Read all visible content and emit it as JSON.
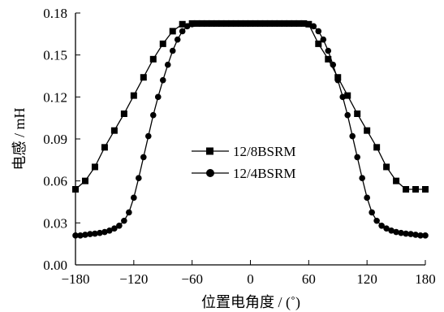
{
  "chart_data": {
    "type": "line",
    "title": "",
    "xlabel": "位置电角度 / (˚)",
    "ylabel": "电感 / mH",
    "xlim": [
      -180,
      180
    ],
    "ylim": [
      0,
      0.18
    ],
    "xticks": [
      -180,
      -120,
      -60,
      0,
      60,
      120,
      180
    ],
    "xtick_labels": [
      "−180",
      "−120",
      "−60",
      "0",
      "60",
      "120",
      "180"
    ],
    "yticks": [
      0,
      0.03,
      0.06,
      0.09,
      0.12,
      0.15,
      0.18
    ],
    "ytick_labels": [
      "0.00",
      "0.03",
      "0.06",
      "0.09",
      "0.12",
      "0.15",
      "0.18"
    ],
    "grid": false,
    "legend_position": "center-left",
    "series": [
      {
        "name": "12/8BSRM",
        "marker": "square",
        "x": [
          -180,
          -170,
          -160,
          -150,
          -140,
          -130,
          -120,
          -110,
          -100,
          -90,
          -80,
          -70,
          -60,
          -55,
          -50,
          -45,
          -40,
          -35,
          -30,
          -25,
          -20,
          -15,
          -10,
          -5,
          0,
          5,
          10,
          15,
          20,
          25,
          30,
          35,
          40,
          45,
          50,
          55,
          60,
          70,
          80,
          90,
          100,
          110,
          120,
          130,
          140,
          150,
          160,
          170,
          180
        ],
        "y": [
          0.054,
          0.06,
          0.07,
          0.084,
          0.096,
          0.108,
          0.121,
          0.134,
          0.147,
          0.158,
          0.167,
          0.172,
          0.1725,
          0.1725,
          0.1725,
          0.1725,
          0.1725,
          0.1725,
          0.1725,
          0.1725,
          0.1725,
          0.1725,
          0.1725,
          0.1725,
          0.1725,
          0.1725,
          0.1725,
          0.1725,
          0.1725,
          0.1725,
          0.1725,
          0.1725,
          0.1725,
          0.1725,
          0.1725,
          0.1725,
          0.172,
          0.158,
          0.147,
          0.134,
          0.121,
          0.108,
          0.096,
          0.084,
          0.07,
          0.06,
          0.054,
          0.054,
          0.054
        ]
      },
      {
        "name": "12/4BSRM",
        "marker": "circle",
        "x": [
          -180,
          -175,
          -170,
          -165,
          -160,
          -155,
          -150,
          -145,
          -140,
          -135,
          -130,
          -125,
          -120,
          -115,
          -110,
          -105,
          -100,
          -95,
          -90,
          -85,
          -80,
          -75,
          -70,
          -65,
          -60,
          -55,
          -50,
          -45,
          -40,
          -35,
          -30,
          -25,
          -20,
          -15,
          -10,
          -5,
          0,
          5,
          10,
          15,
          20,
          25,
          30,
          35,
          40,
          45,
          50,
          55,
          60,
          65,
          70,
          75,
          80,
          85,
          90,
          95,
          100,
          105,
          110,
          115,
          120,
          125,
          130,
          135,
          140,
          145,
          150,
          155,
          160,
          165,
          170,
          175,
          180
        ],
        "y": [
          0.021,
          0.021,
          0.0215,
          0.022,
          0.0223,
          0.0228,
          0.0235,
          0.0245,
          0.026,
          0.028,
          0.0315,
          0.0375,
          0.048,
          0.062,
          0.077,
          0.092,
          0.107,
          0.12,
          0.132,
          0.143,
          0.153,
          0.161,
          0.167,
          0.1705,
          0.172,
          0.1725,
          0.1725,
          0.1725,
          0.1725,
          0.1725,
          0.1725,
          0.1725,
          0.1725,
          0.1725,
          0.1725,
          0.1725,
          0.1725,
          0.1725,
          0.1725,
          0.1725,
          0.1725,
          0.1725,
          0.1725,
          0.1725,
          0.1725,
          0.1725,
          0.1725,
          0.1725,
          0.172,
          0.1705,
          0.167,
          0.161,
          0.153,
          0.143,
          0.132,
          0.12,
          0.107,
          0.092,
          0.077,
          0.062,
          0.048,
          0.0375,
          0.0315,
          0.028,
          0.026,
          0.0245,
          0.0235,
          0.0228,
          0.0223,
          0.022,
          0.0215,
          0.021,
          0.021
        ]
      }
    ]
  }
}
